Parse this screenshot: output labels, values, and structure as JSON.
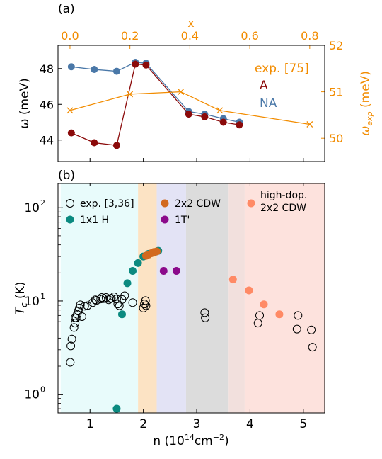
{
  "chart_data": [
    {
      "panel_label": "(a)",
      "type": "line",
      "xlabel": "n (10$^{14}$cm$^{-2}$)",
      "top_xlabel": "x",
      "ylabel": "ω (meV)",
      "right_ylabel_main": "ω",
      "right_ylabel_sub": "exp",
      "right_ylabel_unit": " (meV)",
      "xlim": [
        0.4,
        5.4
      ],
      "ylim": [
        42.8,
        49.3
      ],
      "top_xlim": [
        -0.04,
        0.85
      ],
      "right_ylim": [
        49.5,
        52
      ],
      "left_yticks": [
        44,
        46,
        48
      ],
      "right_yticks": [
        50,
        51,
        52
      ],
      "top_xticks": [
        "0.0",
        "0.2",
        "0.4",
        "0.6",
        "0.8"
      ],
      "top_xtick_values": [
        0.0,
        0.2,
        0.4,
        0.6,
        0.8
      ],
      "series": [
        {
          "name": "NA",
          "color": "#4a78a8",
          "marker": "circle",
          "x": [
            0.65,
            1.08,
            1.5,
            1.85,
            2.05,
            2.85,
            3.15,
            3.5,
            3.8
          ],
          "y": [
            48.1,
            47.95,
            47.85,
            48.35,
            48.3,
            45.6,
            45.45,
            45.2,
            45.0
          ]
        },
        {
          "name": "A",
          "color": "#8b0a0a",
          "marker": "circle",
          "x": [
            0.65,
            1.08,
            1.5,
            1.85,
            2.05,
            2.85,
            3.15,
            3.5,
            3.8
          ],
          "y": [
            44.4,
            43.85,
            43.7,
            48.25,
            48.2,
            45.45,
            45.3,
            45.0,
            44.85
          ]
        },
        {
          "name": "exp. [75]",
          "color": "#f28c00",
          "marker": "x",
          "axis": "right",
          "x_top": [
            0.0,
            0.2,
            0.37,
            0.5,
            0.8
          ],
          "y": [
            50.6,
            50.95,
            51.0,
            50.6,
            50.3
          ]
        }
      ],
      "legend_placement": "right"
    },
    {
      "panel_label": "(b)",
      "type": "scatter",
      "xlabel": "n (10",
      "xlabel_sup": "14",
      "xlabel_unit": "cm",
      "xlabel_sup2": "−2",
      "xlabel_close": ")",
      "ylabel": "T",
      "ylabel_sub": "c",
      "ylabel_unit": " (K)",
      "xlim": [
        0.4,
        5.4
      ],
      "ylim_log10": [
        -0.2,
        2.26
      ],
      "log_y": true,
      "xticks": [
        "1",
        "2",
        "3",
        "4",
        "5"
      ],
      "xtick_values": [
        1,
        2,
        3,
        4,
        5
      ],
      "yticks": [
        "10",
        "10",
        "10"
      ],
      "ytick_exps": [
        "0",
        "1",
        "2"
      ],
      "ytick_values": [
        1,
        10,
        100
      ],
      "regions": [
        {
          "from": 0.45,
          "to": 1.9,
          "color": "#e8fbfb"
        },
        {
          "from": 1.9,
          "to": 2.25,
          "color": "#fce3c4"
        },
        {
          "from": 2.25,
          "to": 2.8,
          "color": "#e3e3f5"
        },
        {
          "from": 2.8,
          "to": 3.6,
          "color": "#dcdcdc"
        },
        {
          "from": 3.6,
          "to": 3.9,
          "color": "#f2e0dd"
        },
        {
          "from": 3.9,
          "to": 5.4,
          "color": "#fde2dd"
        }
      ],
      "legend": [
        {
          "label": "exp. [3,36]",
          "color": "#000000",
          "marker": "open-circle"
        },
        {
          "label": "2x2 CDW",
          "color": "#d2691e",
          "marker": "circle"
        },
        {
          "label": "high-dop.",
          "label2": " 2x2 CDW",
          "color": "#ff8a65",
          "marker": "circle"
        },
        {
          "label": "1x1 H",
          "color": "#0b8a80",
          "marker": "circle"
        },
        {
          "label": "1T'",
          "color": "#8b0a8b",
          "marker": "circle"
        }
      ],
      "series": [
        {
          "name": "exp. [3,36]",
          "color": "#000000",
          "marker": "open-circle",
          "x": [
            0.63,
            0.64,
            0.66,
            0.7,
            0.72,
            0.72,
            0.74,
            0.76,
            0.78,
            0.8,
            0.82,
            0.85,
            0.9,
            0.95,
            1.05,
            1.1,
            1.12,
            1.2,
            1.22,
            1.25,
            1.3,
            1.35,
            1.38,
            1.4,
            1.45,
            1.5,
            1.52,
            1.55,
            1.6,
            1.65,
            1.8,
            2.0,
            2.02,
            2.04,
            2.05,
            3.15,
            3.16,
            4.15,
            4.18,
            4.88,
            4.9,
            5.15,
            5.17
          ],
          "y": [
            2.2,
            3.3,
            3.9,
            5.2,
            5.8,
            6.6,
            6.6,
            7.2,
            7.8,
            8.4,
            9.1,
            6.8,
            8.8,
            8.9,
            9.6,
            10.3,
            10.1,
            10.5,
            10.9,
            10.6,
            10.9,
            10.3,
            10.6,
            10.7,
            11.1,
            10.5,
            9.3,
            8.9,
            10.4,
            11.4,
            9.6,
            8.4,
            9.3,
            10.1,
            8.9,
            7.5,
            6.6,
            5.8,
            7.0,
            5.0,
            7.0,
            4.9,
            3.2
          ]
        },
        {
          "name": "1x1 H",
          "color": "#0b8a80",
          "marker": "circle",
          "x": [
            1.5,
            1.6,
            1.7,
            1.8,
            1.9,
            2.0,
            2.1,
            2.2,
            2.28
          ],
          "y": [
            0.7,
            7.2,
            15.5,
            21.0,
            25.5,
            30.0,
            32.0,
            33.0,
            34.5
          ]
        },
        {
          "name": "2x2 CDW",
          "color": "#d2691e",
          "marker": "circle",
          "x": [
            2.05,
            2.1,
            2.15,
            2.2,
            2.25
          ],
          "y": [
            30.5,
            31.5,
            32.5,
            33.5,
            34.0
          ]
        },
        {
          "name": "1T'",
          "color": "#8b0a8b",
          "marker": "circle",
          "x": [
            2.38,
            2.62
          ],
          "y": [
            21.0,
            21.0
          ]
        },
        {
          "name": "high-dop. 2x2 CDW",
          "color": "#ff8a65",
          "marker": "circle",
          "x": [
            3.68,
            3.98,
            4.26,
            4.55
          ],
          "y": [
            17.0,
            13.0,
            9.2,
            7.2
          ]
        }
      ]
    }
  ]
}
